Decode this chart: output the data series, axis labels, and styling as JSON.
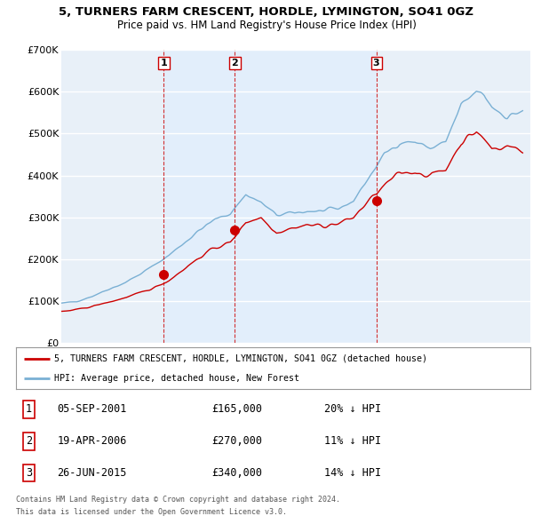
{
  "title": "5, TURNERS FARM CRESCENT, HORDLE, LYMINGTON, SO41 0GZ",
  "subtitle": "Price paid vs. HM Land Registry's House Price Index (HPI)",
  "ylim": [
    0,
    700000
  ],
  "yticks": [
    0,
    100000,
    200000,
    300000,
    400000,
    500000,
    600000,
    700000
  ],
  "ytick_labels": [
    "£0",
    "£100K",
    "£200K",
    "£300K",
    "£400K",
    "£500K",
    "£600K",
    "£700K"
  ],
  "sale_dates": [
    2001.67,
    2006.29,
    2015.48
  ],
  "sale_prices": [
    165000,
    270000,
    340000
  ],
  "sale_labels": [
    "1",
    "2",
    "3"
  ],
  "legend_red": "5, TURNERS FARM CRESCENT, HORDLE, LYMINGTON, SO41 0GZ (detached house)",
  "legend_blue": "HPI: Average price, detached house, New Forest",
  "table": [
    {
      "num": "1",
      "date": "05-SEP-2001",
      "price": "£165,000",
      "pct": "20% ↓ HPI"
    },
    {
      "num": "2",
      "date": "19-APR-2006",
      "price": "£270,000",
      "pct": "11% ↓ HPI"
    },
    {
      "num": "3",
      "date": "26-JUN-2015",
      "price": "£340,000",
      "pct": "14% ↓ HPI"
    }
  ],
  "footer": [
    "Contains HM Land Registry data © Crown copyright and database right 2024.",
    "This data is licensed under the Open Government Licence v3.0."
  ],
  "red_color": "#cc0000",
  "blue_color": "#7ab0d4",
  "shade_color": "#ddeeff",
  "background_color": "#e8f0f8",
  "grid_color": "#ffffff",
  "vline_color": "#cc0000",
  "xlim_start": 1995.0,
  "xlim_end": 2025.5
}
